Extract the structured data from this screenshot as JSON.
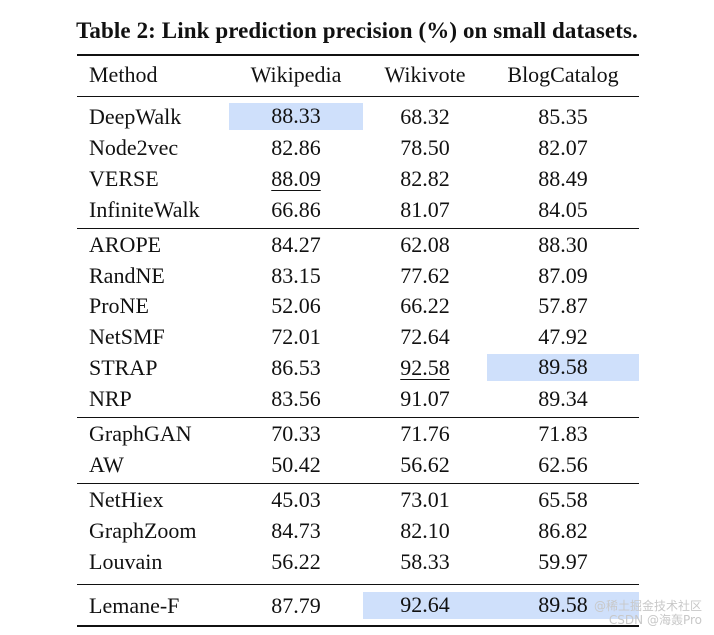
{
  "caption": "Table 2: Link prediction precision (%) on small datasets.",
  "columns": [
    "Method",
    "Wikipedia",
    "Wikivote",
    "BlogCatalog"
  ],
  "groups": [
    [
      {
        "method": "DeepWalk",
        "values": [
          "88.33",
          "68.32",
          "85.35"
        ],
        "highlight": [
          true,
          false,
          false
        ],
        "underline": [
          false,
          false,
          false
        ]
      },
      {
        "method": "Node2vec",
        "values": [
          "82.86",
          "78.50",
          "82.07"
        ],
        "highlight": [
          false,
          false,
          false
        ],
        "underline": [
          false,
          false,
          false
        ]
      },
      {
        "method": "VERSE",
        "values": [
          "88.09",
          "82.82",
          "88.49"
        ],
        "highlight": [
          false,
          false,
          false
        ],
        "underline": [
          true,
          false,
          false
        ]
      },
      {
        "method": "InfiniteWalk",
        "values": [
          "66.86",
          "81.07",
          "84.05"
        ],
        "highlight": [
          false,
          false,
          false
        ],
        "underline": [
          false,
          false,
          false
        ]
      }
    ],
    [
      {
        "method": "AROPE",
        "values": [
          "84.27",
          "62.08",
          "88.30"
        ],
        "highlight": [
          false,
          false,
          false
        ],
        "underline": [
          false,
          false,
          false
        ]
      },
      {
        "method": "RandNE",
        "values": [
          "83.15",
          "77.62",
          "87.09"
        ],
        "highlight": [
          false,
          false,
          false
        ],
        "underline": [
          false,
          false,
          false
        ]
      },
      {
        "method": "ProNE",
        "values": [
          "52.06",
          "66.22",
          "57.87"
        ],
        "highlight": [
          false,
          false,
          false
        ],
        "underline": [
          false,
          false,
          false
        ]
      },
      {
        "method": "NetSMF",
        "values": [
          "72.01",
          "72.64",
          "47.92"
        ],
        "highlight": [
          false,
          false,
          false
        ],
        "underline": [
          false,
          false,
          false
        ]
      },
      {
        "method": "STRAP",
        "values": [
          "86.53",
          "92.58",
          "89.58"
        ],
        "highlight": [
          false,
          false,
          true
        ],
        "underline": [
          false,
          true,
          false
        ]
      },
      {
        "method": "NRP",
        "values": [
          "83.56",
          "91.07",
          "89.34"
        ],
        "highlight": [
          false,
          false,
          false
        ],
        "underline": [
          false,
          false,
          false
        ]
      }
    ],
    [
      {
        "method": "GraphGAN",
        "values": [
          "70.33",
          "71.76",
          "71.83"
        ],
        "highlight": [
          false,
          false,
          false
        ],
        "underline": [
          false,
          false,
          false
        ]
      },
      {
        "method": "AW",
        "values": [
          "50.42",
          "56.62",
          "62.56"
        ],
        "highlight": [
          false,
          false,
          false
        ],
        "underline": [
          false,
          false,
          false
        ]
      }
    ],
    [
      {
        "method": "NetHiex",
        "values": [
          "45.03",
          "73.01",
          "65.58"
        ],
        "highlight": [
          false,
          false,
          false
        ],
        "underline": [
          false,
          false,
          false
        ]
      },
      {
        "method": "GraphZoom",
        "values": [
          "84.73",
          "82.10",
          "86.82"
        ],
        "highlight": [
          false,
          false,
          false
        ],
        "underline": [
          false,
          false,
          false
        ]
      },
      {
        "method": "Louvain",
        "values": [
          "56.22",
          "58.33",
          "59.97"
        ],
        "highlight": [
          false,
          false,
          false
        ],
        "underline": [
          false,
          false,
          false
        ]
      }
    ],
    [
      {
        "method": "Lemane-F",
        "values": [
          "87.79",
          "92.64",
          "89.58"
        ],
        "highlight": [
          false,
          true,
          true
        ],
        "underline": [
          false,
          false,
          false
        ]
      }
    ]
  ],
  "highlight_color": "#cfe0fb",
  "watermark": [
    "@稀土掘金技术社区",
    "CSDN @海轰Pro"
  ]
}
